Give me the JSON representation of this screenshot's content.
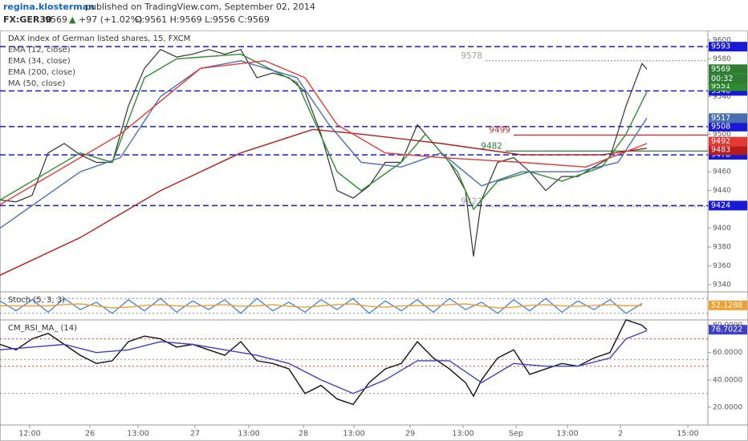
{
  "header": {
    "author": "regina.klosterman",
    "published": "published on TradingView.com, September 02, 2014",
    "symbol": "FX:GER30",
    "last": "9569",
    "arrow": "▲",
    "change": "+97 (+1.02%)",
    "ohlc": "O:9561 H:9569 L:9556 C:9569"
  },
  "chart_data": [
    {
      "type": "line",
      "title": "DAX index of German listed shares, 15, FXCM",
      "xlim": [
        0,
        88.2
      ],
      "ylim": [
        9334,
        9608.5
      ],
      "yticks": [
        9600,
        9580,
        9540,
        9500,
        9460,
        9440,
        9400,
        9380,
        9360,
        9340
      ],
      "countdown": "00:32",
      "series": [
        {
          "color": "#333333",
          "price_label": 9569,
          "label_color": "#2e7d32",
          "x": [
            0,
            2,
            4,
            6,
            8,
            10,
            12,
            14,
            16,
            18,
            20,
            22,
            24,
            26,
            28,
            30,
            32,
            34,
            36,
            38,
            40,
            42,
            44,
            46,
            48,
            50,
            52,
            54,
            56,
            58,
            59,
            60,
            62,
            64,
            66,
            68,
            70,
            72,
            74,
            76,
            78,
            80,
            80.6
          ],
          "values": [
            9430,
            9428,
            9435,
            9480,
            9490,
            9478,
            9470,
            9470,
            9530,
            9570,
            9590,
            9582,
            9585,
            9590,
            9585,
            9590,
            9560,
            9565,
            9560,
            9545,
            9500,
            9440,
            9432,
            9445,
            9470,
            9470,
            9510,
            9490,
            9470,
            9440,
            9370,
            9430,
            9470,
            9475,
            9460,
            9440,
            9455,
            9455,
            9465,
            9475,
            9530,
            9575,
            9569
          ]
        },
        {
          "name": "EMA (12, close)",
          "color": "#2e8b2e",
          "price_label": 9551,
          "x": [
            0,
            6,
            10,
            14,
            18,
            22,
            30,
            37,
            42,
            45,
            50,
            53,
            57,
            59,
            62,
            66,
            70,
            75,
            78,
            80.6
          ],
          "values": [
            9430,
            9460,
            9480,
            9470,
            9560,
            9580,
            9585,
            9555,
            9460,
            9440,
            9470,
            9500,
            9460,
            9420,
            9450,
            9460,
            9450,
            9465,
            9500,
            9545
          ]
        },
        {
          "name": "EMA (34, close)",
          "color": "#4a6fb0",
          "price_label": 9517,
          "x": [
            0,
            10,
            15,
            20,
            25,
            30,
            37,
            41,
            45,
            50,
            55,
            60,
            65,
            72,
            77,
            80.6
          ],
          "values": [
            9400,
            9460,
            9475,
            9540,
            9570,
            9578,
            9560,
            9510,
            9470,
            9465,
            9480,
            9445,
            9460,
            9460,
            9470,
            9517
          ]
        },
        {
          "name": "EMA (200, close)",
          "color": "#b71c1c",
          "price_label": 9483,
          "x": [
            0,
            10,
            20,
            30,
            39,
            45,
            55,
            65,
            75,
            80.6
          ],
          "values": [
            9350,
            9390,
            9440,
            9480,
            9505,
            9500,
            9490,
            9478,
            9478,
            9485
          ]
        },
        {
          "name": "MA (50, close)",
          "color": "#e53935",
          "price_label": 9492,
          "x": [
            0,
            15,
            25,
            33,
            38,
            42,
            48,
            55,
            65,
            73,
            80.6
          ],
          "values": [
            9425,
            9500,
            9570,
            9578,
            9560,
            9510,
            9480,
            9475,
            9470,
            9465,
            9490
          ]
        }
      ],
      "levels": [
        {
          "value": 9593,
          "color": "#1a1ad6"
        },
        {
          "value": 9546,
          "color": "#1a1ad6"
        },
        {
          "value": 9508,
          "color": "#1a1ad6"
        },
        {
          "value": 9478,
          "color": "#1a1ad6"
        },
        {
          "value": 9424,
          "color": "#1a1ad6"
        }
      ],
      "annotations": [
        {
          "value": 9578,
          "x": 60.5,
          "color": "#9e9e9e"
        },
        {
          "value": 9499,
          "x": 64,
          "color": "#d32f2f"
        },
        {
          "value": 9482,
          "x": 63,
          "color": "#2e7d32"
        },
        {
          "value": 9423,
          "x": 60.5,
          "color": "#9e9e9e"
        }
      ]
    },
    {
      "type": "line",
      "title": "Stoch (5, 3, 3)",
      "xlim": [
        0,
        88.2
      ],
      "ylim": [
        0,
        100
      ],
      "last_label": 52.1288,
      "levels": [
        {
          "value": 80,
          "color": "#888888"
        },
        {
          "value": 20,
          "color": "#888888"
        }
      ],
      "series": [
        {
          "color": "#4a8ad8",
          "x": [
            0,
            2,
            4,
            6,
            8,
            10,
            12,
            14,
            16,
            18,
            20,
            22,
            24,
            26,
            28,
            30,
            32,
            34,
            36,
            38,
            40,
            42,
            44,
            46,
            48,
            50,
            52,
            54,
            56,
            58,
            60,
            62,
            64,
            66,
            68,
            70,
            72,
            74,
            76,
            78,
            80
          ],
          "values": [
            70,
            30,
            75,
            25,
            80,
            35,
            65,
            20,
            75,
            30,
            80,
            25,
            70,
            35,
            75,
            20,
            80,
            30,
            65,
            25,
            75,
            35,
            80,
            20,
            70,
            30,
            75,
            25,
            80,
            35,
            65,
            20,
            75,
            30,
            80,
            25,
            70,
            35,
            75,
            20,
            60
          ]
        },
        {
          "color": "#f0a030",
          "price_label": 52.1288,
          "x": [
            0,
            2,
            4,
            6,
            8,
            10,
            12,
            14,
            16,
            18,
            20,
            22,
            24,
            26,
            28,
            30,
            32,
            34,
            36,
            38,
            40,
            42,
            44,
            46,
            48,
            50,
            52,
            54,
            56,
            58,
            60,
            62,
            64,
            66,
            68,
            70,
            72,
            74,
            76,
            78,
            80
          ],
          "values": [
            50,
            50,
            50,
            50,
            55,
            58,
            50,
            42,
            45,
            52,
            55,
            50,
            48,
            52,
            55,
            48,
            50,
            55,
            48,
            45,
            50,
            55,
            58,
            48,
            45,
            50,
            52,
            50,
            55,
            58,
            50,
            42,
            45,
            52,
            55,
            50,
            48,
            52,
            55,
            50,
            52
          ]
        }
      ]
    },
    {
      "type": "line",
      "title": "CM_RSI_MA_ (14)",
      "xlim": [
        0,
        88.2
      ],
      "ylim": [
        7,
        82.7
      ],
      "yticks": [
        {
          "value": 80,
          "label": "80.0000"
        },
        {
          "value": 60,
          "label": "60.0000"
        },
        {
          "value": 40,
          "label": "40.0000"
        },
        {
          "value": 20,
          "label": "20.0000"
        }
      ],
      "xticks": [
        {
          "value": 3.7,
          "label": "12:00"
        },
        {
          "value": 11.2,
          "label": "26"
        },
        {
          "value": 17.2,
          "label": "13:00"
        },
        {
          "value": 24.3,
          "label": "27"
        },
        {
          "value": 31,
          "label": "13:00"
        },
        {
          "value": 37.8,
          "label": "28"
        },
        {
          "value": 44.1,
          "label": "13:00"
        },
        {
          "value": 51.1,
          "label": "29"
        },
        {
          "value": 57.7,
          "label": "13:00"
        },
        {
          "value": 64.3,
          "label": "Sep"
        },
        {
          "value": 70.7,
          "label": "13:00"
        },
        {
          "value": 77.3,
          "label": "2"
        },
        {
          "value": 85.7,
          "label": "15:00"
        }
      ],
      "levels": [
        {
          "value": 70,
          "color": "#e53935"
        },
        {
          "value": 55,
          "color": "#888888"
        },
        {
          "value": 50,
          "color": "#e53935"
        },
        {
          "value": 30,
          "color": "#888888"
        }
      ],
      "series": [
        {
          "color": "#111111",
          "x": [
            0,
            2,
            4,
            6,
            8,
            10,
            12,
            14,
            16,
            18,
            20,
            22,
            24,
            26,
            28,
            30,
            32,
            34,
            36,
            38,
            40,
            42,
            44,
            46,
            48,
            50,
            52,
            54,
            56,
            58,
            59,
            60,
            62,
            64,
            66,
            68,
            70,
            72,
            74,
            76,
            78,
            80,
            80.6
          ],
          "values": [
            66,
            62,
            70,
            74,
            66,
            58,
            52,
            54,
            68,
            72,
            70,
            64,
            66,
            62,
            58,
            68,
            54,
            52,
            48,
            30,
            36,
            26,
            22,
            38,
            48,
            52,
            68,
            56,
            48,
            38,
            28,
            40,
            56,
            62,
            44,
            48,
            52,
            50,
            56,
            60,
            84,
            80,
            76.7
          ]
        },
        {
          "color": "#3f3fc8",
          "price_label": 76.7022,
          "x": [
            0,
            4,
            8,
            12,
            16,
            20,
            24,
            28,
            32,
            36,
            40,
            44,
            48,
            52,
            56,
            60,
            64,
            68,
            72,
            76,
            78,
            80.6
          ],
          "values": [
            62,
            64,
            66,
            60,
            62,
            68,
            66,
            62,
            58,
            52,
            40,
            30,
            40,
            54,
            54,
            38,
            52,
            50,
            50,
            56,
            70,
            76
          ]
        }
      ]
    }
  ]
}
